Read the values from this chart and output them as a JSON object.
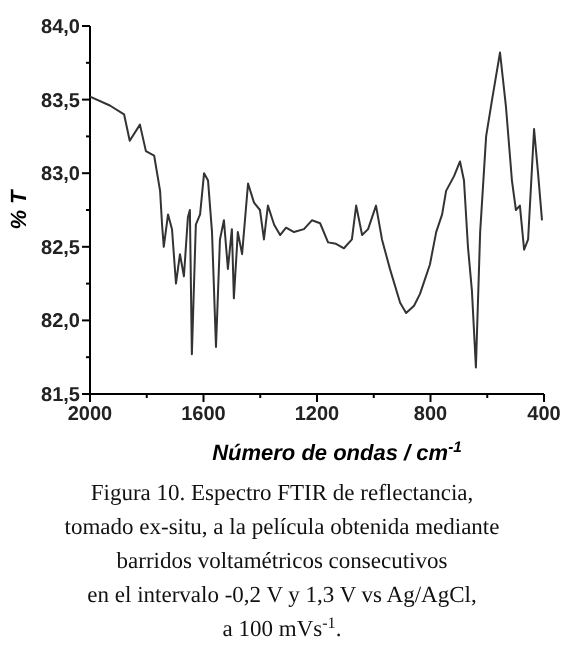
{
  "chart_data": {
    "type": "line",
    "xlabel": "Número de ondas / cm$^{-1}$",
    "ylabel": "% T",
    "annotations": [
      "Figura 10. Espectro FTIR de reflectancia,\ntomado ex-situ, a la película obtenida mediante\nbarridos voltamétricos consecutivos\nen el intervalo -0,2 V y 1,3 V vs Ag/AgCl,\na 100 mVs$^{-1}$."
    ],
    "xlim": [
      2000,
      400
    ],
    "ylim": [
      81.5,
      84.0
    ],
    "xticks": [
      2000,
      {
        "value": 1800,
        "label": null
      },
      1600,
      {
        "value": 1400,
        "label": null
      },
      1200,
      {
        "value": 1000,
        "label": null
      },
      800,
      {
        "value": 600,
        "label": null
      },
      400
    ],
    "yticks": [
      {
        "value": 81.5,
        "label": "81,5"
      },
      {
        "value": 81.75,
        "label": null
      },
      {
        "value": 82.0,
        "label": "82,0"
      },
      {
        "value": 82.25,
        "label": null
      },
      {
        "value": 82.5,
        "label": "82,5"
      },
      {
        "value": 82.75,
        "label": null
      },
      {
        "value": 83.0,
        "label": "83,0"
      },
      {
        "value": 83.25,
        "label": null
      },
      {
        "value": 83.5,
        "label": "83,5"
      },
      {
        "value": 83.75,
        "label": null
      },
      {
        "value": 84.0,
        "label": "84,0"
      }
    ],
    "grid": false,
    "line_style": "solid",
    "series": [
      {
        "color": "#333333",
        "x": [
          2000,
          1930,
          1880,
          1860,
          1824,
          1803,
          1774,
          1753,
          1746,
          1740,
          1725,
          1711,
          1697,
          1683,
          1669,
          1655,
          1648,
          1641,
          1627,
          1612,
          1598,
          1584,
          1570,
          1556,
          1542,
          1528,
          1514,
          1500,
          1493,
          1479,
          1464,
          1443,
          1422,
          1401,
          1387,
          1373,
          1351,
          1330,
          1309,
          1281,
          1246,
          1218,
          1189,
          1161,
          1133,
          1105,
          1077,
          1062,
          1041,
          1020,
          992,
          971,
          943,
          907,
          886,
          858,
          837,
          802,
          780,
          759,
          745,
          717,
          696,
          682,
          668,
          654,
          640,
          625,
          604,
          583,
          555,
          534,
          513,
          499,
          485,
          470,
          456,
          435,
          421,
          407
        ],
        "values": [
          83.52,
          83.46,
          83.4,
          83.22,
          83.33,
          83.15,
          83.12,
          82.88,
          82.65,
          82.5,
          82.72,
          82.62,
          82.25,
          82.45,
          82.3,
          82.7,
          82.75,
          81.77,
          82.65,
          82.72,
          83.0,
          82.95,
          82.6,
          81.82,
          82.55,
          82.68,
          82.35,
          82.62,
          82.15,
          82.6,
          82.45,
          82.93,
          82.8,
          82.75,
          82.55,
          82.78,
          82.65,
          82.58,
          82.63,
          82.6,
          82.62,
          82.68,
          82.66,
          82.53,
          82.52,
          82.49,
          82.55,
          82.78,
          82.58,
          82.62,
          82.78,
          82.55,
          82.35,
          82.12,
          82.05,
          82.1,
          82.18,
          82.38,
          82.6,
          82.72,
          82.88,
          82.98,
          83.08,
          82.95,
          82.5,
          82.2,
          81.68,
          82.6,
          83.25,
          83.5,
          83.82,
          83.45,
          82.95,
          82.75,
          82.78,
          82.48,
          82.55,
          83.3,
          83.0,
          82.68
        ]
      }
    ]
  }
}
